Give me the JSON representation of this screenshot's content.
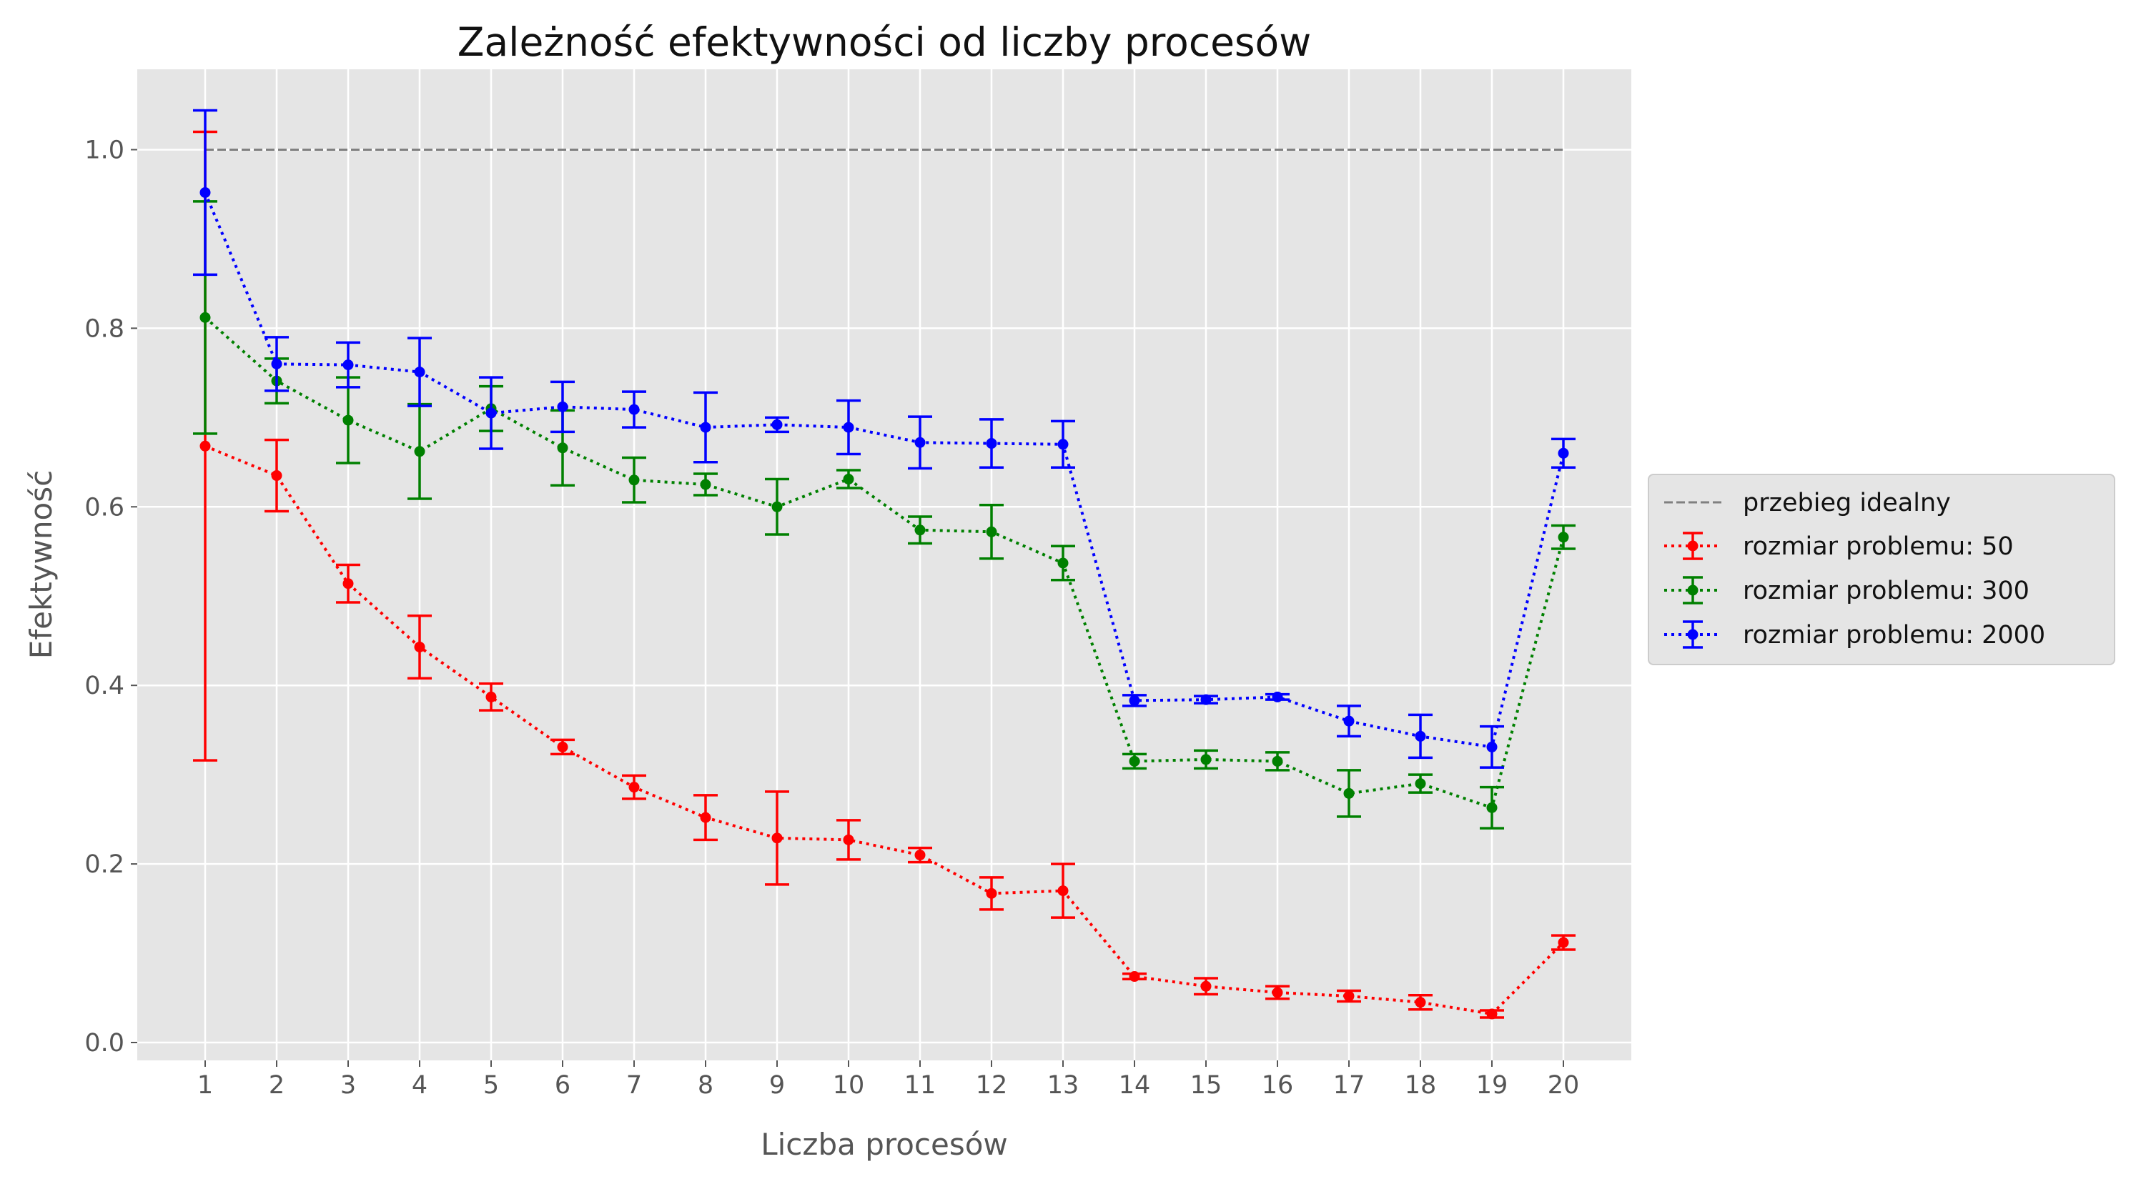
{
  "chart_data": {
    "type": "line",
    "title": "Zależność efektywności od liczby procesów",
    "xlabel": "Liczba procesów",
    "ylabel": "Efektywność",
    "xlim": [
      0.05,
      20.95
    ],
    "ylim": [
      -0.02,
      1.09
    ],
    "x": [
      1,
      2,
      3,
      4,
      5,
      6,
      7,
      8,
      9,
      10,
      11,
      12,
      13,
      14,
      15,
      16,
      17,
      18,
      19,
      20
    ],
    "x_ticks": [
      "1",
      "2",
      "3",
      "4",
      "5",
      "6",
      "7",
      "8",
      "9",
      "10",
      "11",
      "12",
      "13",
      "14",
      "15",
      "16",
      "17",
      "18",
      "19",
      "20"
    ],
    "y_ticks": [
      0.0,
      0.2,
      0.4,
      0.6,
      0.8,
      1.0
    ],
    "y_tick_labels": [
      "0.0",
      "0.2",
      "0.4",
      "0.6",
      "0.8",
      "1.0"
    ],
    "grid": true,
    "legend_position": "right, outside plot",
    "reference_line": {
      "name": "przebieg idealny",
      "y": 1.0,
      "x_range": [
        1,
        20
      ],
      "color": "#808080",
      "style": "dashed"
    },
    "series": [
      {
        "name": "rozmiar problemu: 50",
        "color": "#ff0000",
        "values": [
          0.668,
          0.635,
          0.514,
          0.443,
          0.387,
          0.331,
          0.286,
          0.252,
          0.229,
          0.227,
          0.21,
          0.167,
          0.17,
          0.074,
          0.063,
          0.056,
          0.052,
          0.045,
          0.032,
          0.112
        ],
        "errors": [
          0.352,
          0.04,
          0.021,
          0.035,
          0.015,
          0.008,
          0.013,
          0.025,
          0.052,
          0.022,
          0.008,
          0.018,
          0.03,
          0.003,
          0.009,
          0.007,
          0.006,
          0.008,
          0.004,
          0.008
        ]
      },
      {
        "name": "rozmiar problemu: 300",
        "color": "#008000",
        "values": [
          0.812,
          0.741,
          0.697,
          0.662,
          0.71,
          0.666,
          0.63,
          0.625,
          0.6,
          0.631,
          0.574,
          0.572,
          0.537,
          0.315,
          0.317,
          0.315,
          0.279,
          0.29,
          0.263,
          0.566
        ],
        "errors": [
          0.13,
          0.025,
          0.048,
          0.053,
          0.025,
          0.042,
          0.025,
          0.012,
          0.031,
          0.01,
          0.015,
          0.03,
          0.019,
          0.008,
          0.01,
          0.01,
          0.026,
          0.01,
          0.023,
          0.013
        ]
      },
      {
        "name": "rozmiar problemu: 2000",
        "color": "#0000ff",
        "values": [
          0.952,
          0.76,
          0.759,
          0.751,
          0.705,
          0.712,
          0.709,
          0.689,
          0.692,
          0.689,
          0.672,
          0.671,
          0.67,
          0.383,
          0.384,
          0.387,
          0.36,
          0.343,
          0.331,
          0.66
        ],
        "errors": [
          0.092,
          0.03,
          0.025,
          0.038,
          0.04,
          0.028,
          0.02,
          0.039,
          0.008,
          0.03,
          0.029,
          0.027,
          0.026,
          0.006,
          0.004,
          0.003,
          0.017,
          0.024,
          0.023,
          0.016
        ]
      }
    ]
  }
}
